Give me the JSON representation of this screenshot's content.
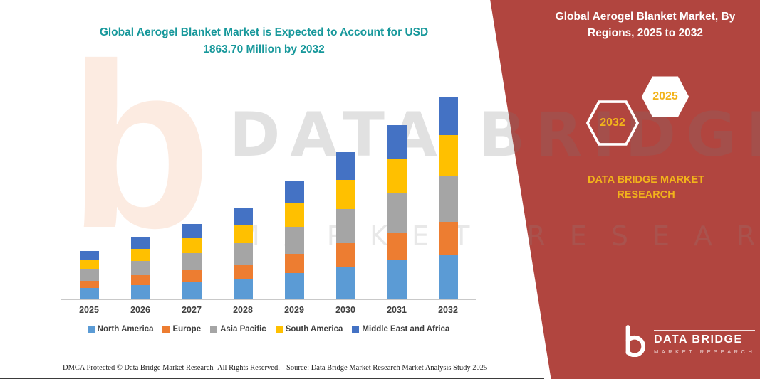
{
  "titles": {
    "chart_title_line1": "Global Aerogel Blanket Market is Expected to Account for USD",
    "chart_title_line2": "1863.70 Million by 2032",
    "panel_title": "Global Aerogel Blanket Market, By Regions, 2025 to 2032"
  },
  "panel": {
    "hexagons": [
      {
        "year": "2032"
      },
      {
        "year": "2025"
      }
    ],
    "brand_caption": "DATA BRIDGE MARKET RESEARCH",
    "logo": {
      "name": "DATA BRIDGE",
      "tagline": "MARKET RESEARCH"
    },
    "colors": {
      "background": "#B1453F",
      "gold": "#F2B31B",
      "title_teal": "#17989B"
    }
  },
  "watermark": {
    "big_letter": "b",
    "line1": "DATA BRIDGE",
    "line2": "MARKET RESEARCH"
  },
  "footer": {
    "dmca": "DMCA Protected © Data Bridge Market Research-  All Rights Reserved.",
    "source": "Source: Data Bridge Market Research  Market Analysis Study 2025"
  },
  "chart_data": {
    "type": "bar",
    "stacked": true,
    "title": "Global Aerogel Blanket Market is Expected to Account for USD 1863.70 Million by 2032",
    "value_unit": "USD Million",
    "categories": [
      "2025",
      "2026",
      "2027",
      "2028",
      "2029",
      "2030",
      "2031",
      "2032"
    ],
    "series": [
      {
        "name": "North America",
        "color": "#5B9BD5",
        "values": [
          97,
          125,
          152,
          184,
          239,
          297,
          352,
          410
        ]
      },
      {
        "name": "Europe",
        "color": "#ED7D31",
        "values": [
          70,
          91,
          110,
          134,
          174,
          216,
          256,
          298
        ]
      },
      {
        "name": "Asia Pacific",
        "color": "#A5A5A5",
        "values": [
          101,
          131,
          159,
          192,
          250,
          311,
          368,
          429
        ]
      },
      {
        "name": "South America",
        "color": "#FFC000",
        "values": [
          88,
          114,
          138,
          167,
          217,
          270,
          320,
          373
        ]
      },
      {
        "name": "Middle East and Africa",
        "color": "#4472C4",
        "values": [
          84,
          109,
          131,
          158,
          205,
          256,
          304,
          353.7
        ]
      }
    ],
    "totals": [
      440,
      570,
      690,
      835,
      1085,
      1350,
      1600,
      1863.7
    ],
    "ylim": [
      0,
      1900
    ],
    "xlabel": "",
    "ylabel": "",
    "grid": false,
    "legend_position": "bottom"
  }
}
